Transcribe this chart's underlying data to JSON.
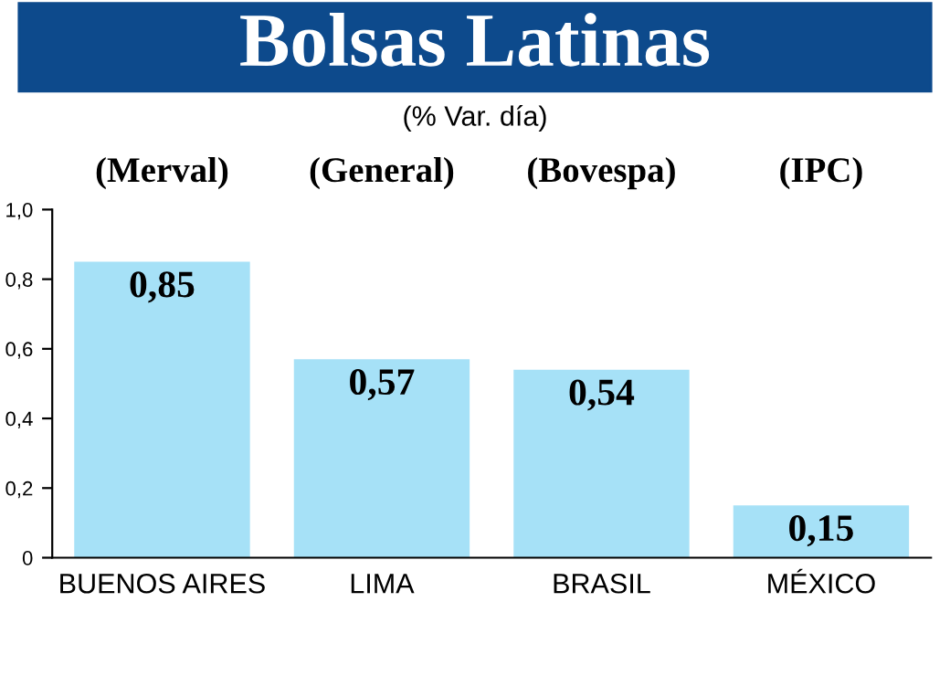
{
  "chart_data": {
    "type": "bar",
    "title": "Bolsas Latinas",
    "subtitle": "(% Var. día)",
    "categories": [
      "BUENOS AIRES",
      "LIMA",
      "BRASIL",
      "MÉXICO"
    ],
    "values": [
      0.85,
      0.57,
      0.54,
      0.15
    ],
    "value_labels": [
      "0,85",
      "0,57",
      "0,54",
      "0,15"
    ],
    "color": "#a6e1f7",
    "ylim": [
      0,
      1.0
    ],
    "yticks": [
      {
        "value": 0,
        "label": "0"
      },
      {
        "value": 0.2,
        "label": "0,2"
      },
      {
        "value": 0.4,
        "label": "0,4"
      },
      {
        "value": 0.6,
        "label": "0,6"
      },
      {
        "value": 0.8,
        "label": "0,8"
      },
      {
        "value": 1.0,
        "label": "1,0"
      }
    ],
    "grid": false,
    "legend": false,
    "annotations": [
      "(Merval)",
      "(General)",
      "(Bovespa)",
      "(IPC)"
    ]
  }
}
